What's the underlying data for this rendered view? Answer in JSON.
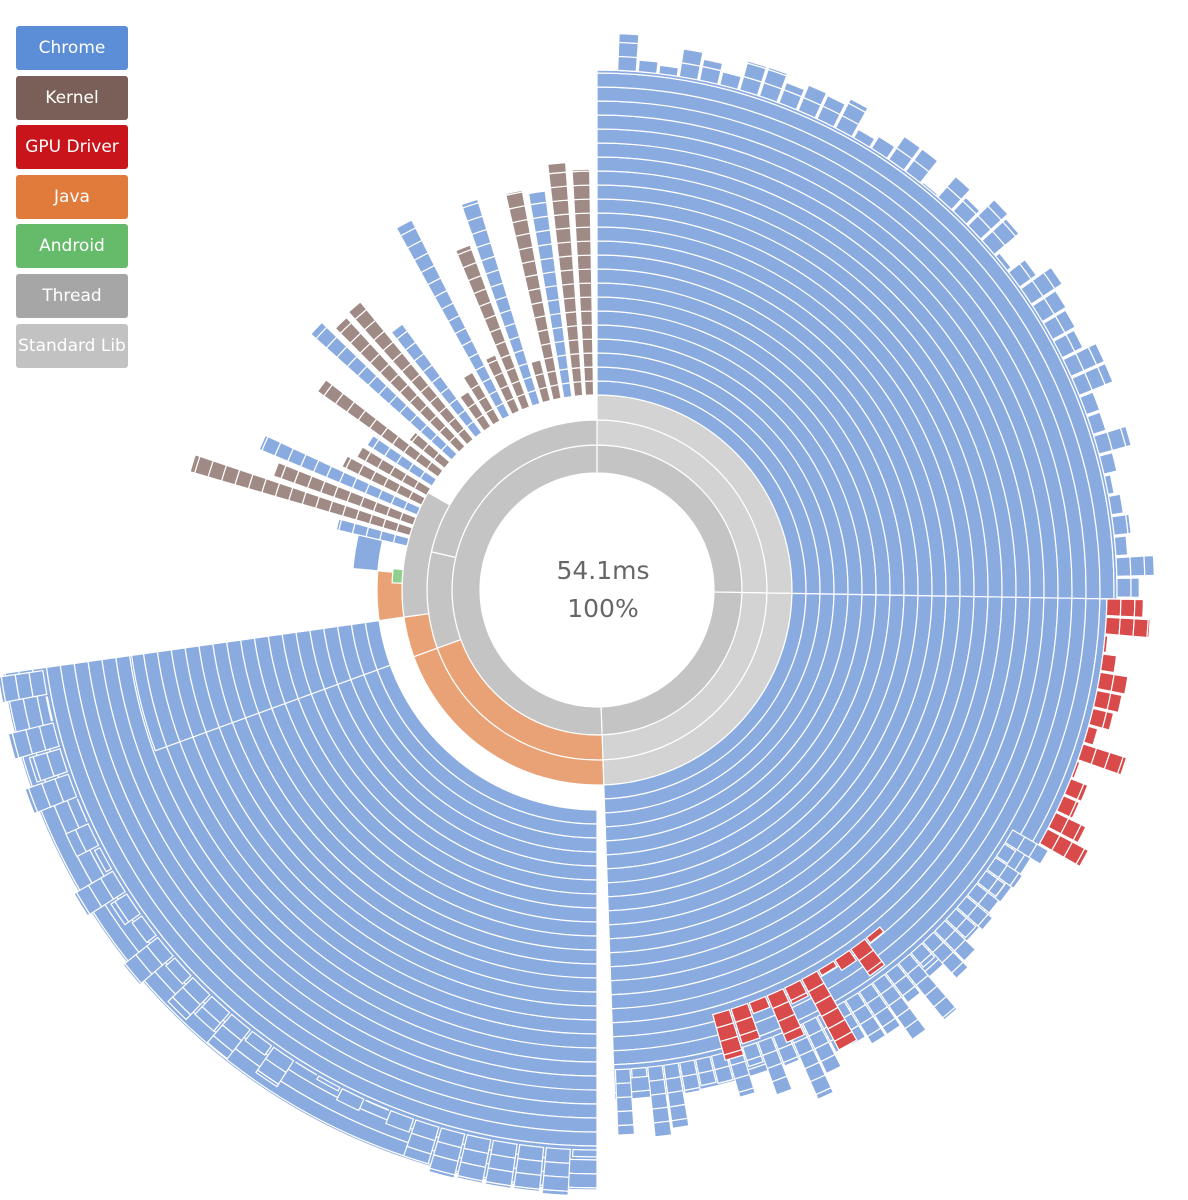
{
  "legend": [
    {
      "label": "Chrome",
      "color": "#5b8ed6"
    },
    {
      "label": "Kernel",
      "color": "#7a5f58"
    },
    {
      "label": "GPU Driver",
      "color": "#c8141a"
    },
    {
      "label": "Java",
      "color": "#e07b3c"
    },
    {
      "label": "Android",
      "color": "#66bb6a"
    },
    {
      "label": "Thread",
      "color": "#a6a6a6"
    },
    {
      "label": "Standard Lib",
      "color": "#c2c2c2"
    }
  ],
  "center": {
    "time": "54.1ms",
    "percent": "100%"
  },
  "colors": {
    "chrome": "#8aabe0",
    "kernel": "#a08a85",
    "gpu": "#d94a4a",
    "java": "#e9a275",
    "android": "#8fd08f",
    "thread": "#c4c4c4",
    "stdlib": "#d3d3d3",
    "dark": "#555555"
  }
}
